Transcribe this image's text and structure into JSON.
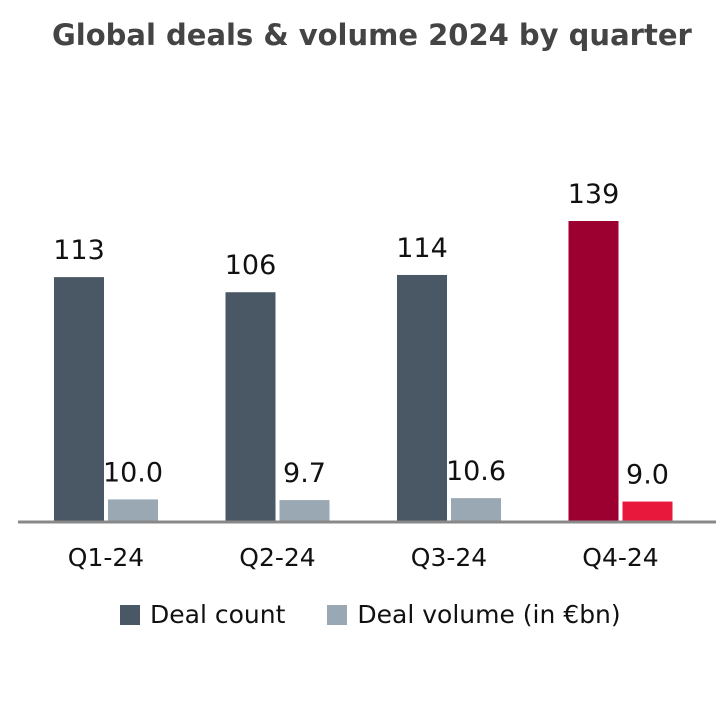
{
  "title": "Global deals & volume 2024 by quarter",
  "chart_data": {
    "type": "bar",
    "title": "Global deals & volume 2024 by quarter",
    "categories": [
      "Q1-24",
      "Q2-24",
      "Q3-24",
      "Q4-24"
    ],
    "series": [
      {
        "name": "Deal count",
        "values": [
          113,
          106,
          114,
          139
        ],
        "labels": [
          "113",
          "106",
          "114",
          "139"
        ],
        "color": "#4a5764",
        "highlight_color": "#9c0030"
      },
      {
        "name": "Deal volume (in €bn)",
        "values": [
          10.0,
          9.7,
          10.6,
          9.0
        ],
        "labels": [
          "10.0",
          "9.7",
          "10.6",
          "9.0"
        ],
        "color": "#9aa8b4",
        "highlight_color": "#e8183c"
      }
    ],
    "highlight_index": 3,
    "legend_position": "bottom",
    "grid": false,
    "ylim": [
      0,
      139
    ]
  },
  "legend": {
    "items": [
      {
        "label": "Deal count",
        "color": "#4a5764"
      },
      {
        "label": "Deal volume (in €bn)",
        "color": "#9aa8b4"
      }
    ]
  }
}
